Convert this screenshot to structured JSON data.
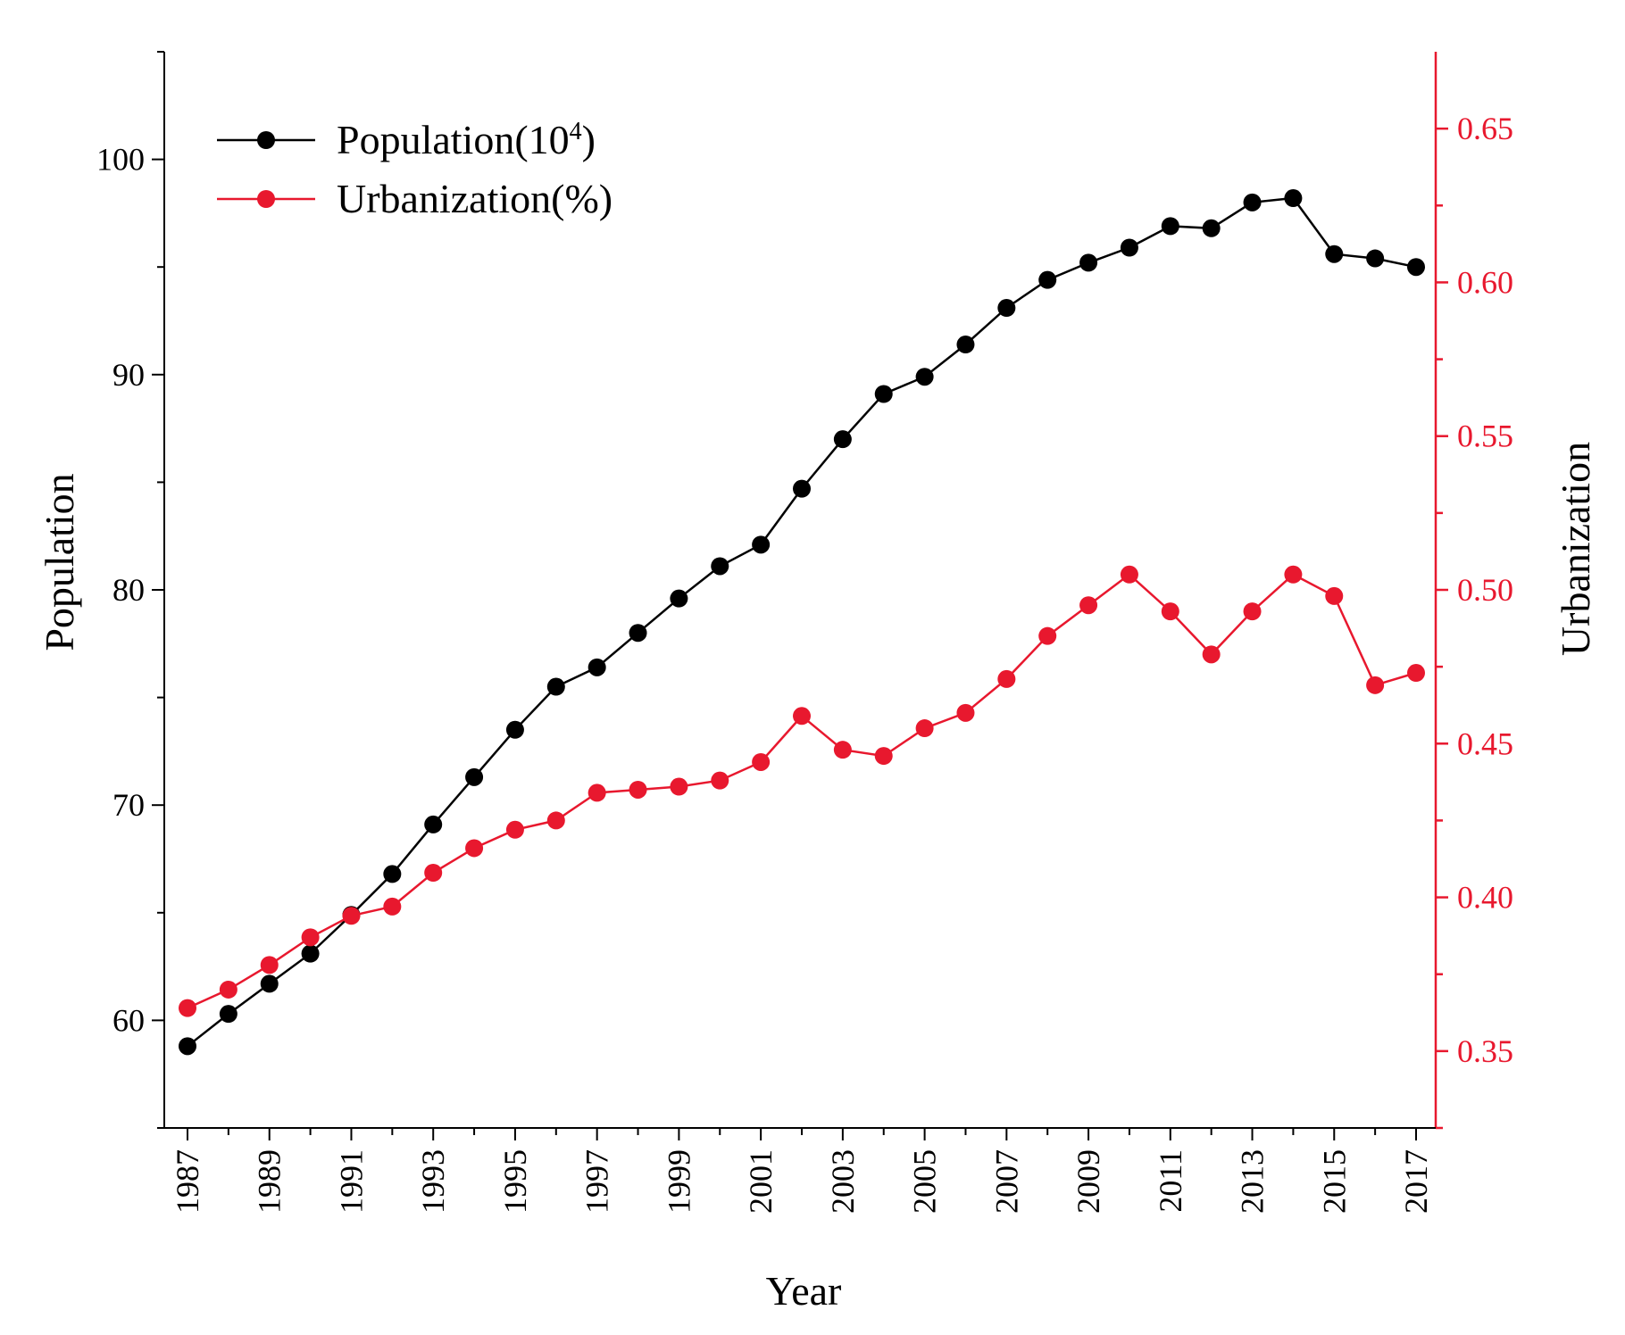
{
  "chart_data": {
    "type": "line",
    "x": [
      1987,
      1988,
      1989,
      1990,
      1991,
      1992,
      1993,
      1994,
      1995,
      1996,
      1997,
      1998,
      1999,
      2000,
      2001,
      2002,
      2003,
      2004,
      2005,
      2006,
      2007,
      2008,
      2009,
      2010,
      2011,
      2012,
      2013,
      2014,
      2015,
      2016,
      2017
    ],
    "x_tick_labels": [
      "1987",
      "1989",
      "1991",
      "1993",
      "1995",
      "1997",
      "1999",
      "2001",
      "2003",
      "2005",
      "2007",
      "2009",
      "2011",
      "2013",
      "2015",
      "2017"
    ],
    "xlabel": "Year",
    "xlim": [
      1987,
      2017
    ],
    "left_axis": {
      "label": "Population",
      "ylim": [
        55,
        105
      ],
      "tick_labels": [
        "60",
        "70",
        "80",
        "90",
        "100"
      ],
      "color": "#000000"
    },
    "right_axis": {
      "label": "Urbanization",
      "ylim": [
        0.325,
        0.675
      ],
      "tick_labels": [
        "0.35",
        "0.40",
        "0.45",
        "0.50",
        "0.55",
        "0.60",
        "0.65"
      ],
      "color": "#e8182e"
    },
    "series": [
      {
        "name": "Population",
        "legend_label": "Population(10",
        "legend_sup": "4",
        "legend_suffix": ")",
        "axis": "left",
        "color": "#000000",
        "values": [
          58.8,
          60.3,
          61.7,
          63.1,
          64.9,
          66.8,
          69.1,
          71.3,
          73.5,
          75.5,
          76.4,
          78.0,
          79.6,
          81.1,
          82.1,
          84.7,
          87.0,
          89.1,
          89.9,
          91.4,
          93.1,
          94.4,
          95.2,
          95.9,
          96.9,
          96.8,
          98.0,
          98.2,
          95.6,
          95.4,
          95.0
        ]
      },
      {
        "name": "Urbanization",
        "legend_label": "Urbanization(%)",
        "axis": "right",
        "color": "#e8182e",
        "values": [
          0.364,
          0.37,
          0.378,
          0.387,
          0.394,
          0.397,
          0.408,
          0.416,
          0.422,
          0.425,
          0.434,
          0.435,
          0.436,
          0.438,
          0.444,
          0.459,
          0.448,
          0.446,
          0.455,
          0.46,
          0.471,
          0.485,
          0.495,
          0.505,
          0.493,
          0.479,
          0.493,
          0.505,
          0.498,
          0.469,
          0.473
        ]
      }
    ]
  }
}
